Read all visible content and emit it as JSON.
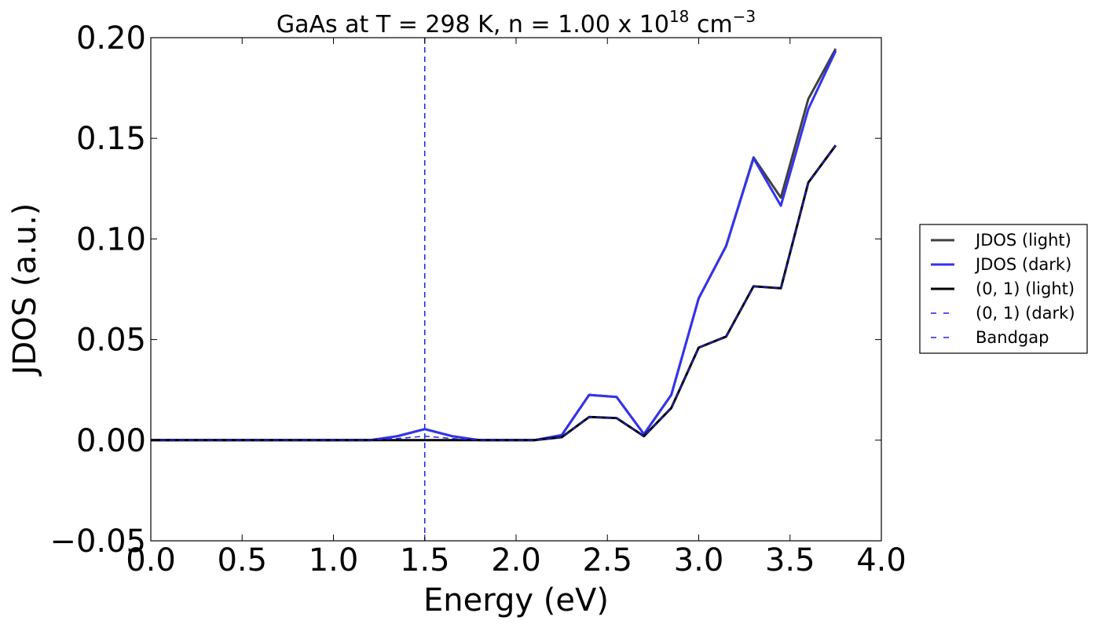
{
  "chart_data": {
    "type": "line",
    "title": "GaAs at T = 298 K, n = 1.00 x 10",
    "title_exp": "18",
    "title_unit": "cm",
    "title_unit_exp": "−3",
    "xlabel": "Energy (eV)",
    "ylabel": "JDOS (a.u.)",
    "xlim": [
      0.0,
      4.0
    ],
    "ylim": [
      -0.05,
      0.2
    ],
    "xticks": [
      "0.0",
      "0.5",
      "1.0",
      "1.5",
      "2.0",
      "2.5",
      "3.0",
      "3.5",
      "4.0"
    ],
    "yticks": [
      "−0.05",
      "0.00",
      "0.05",
      "0.10",
      "0.15",
      "0.20"
    ],
    "grid": false,
    "legend_position": "outside-right",
    "x": [
      0.0,
      0.15,
      0.3,
      0.45,
      0.6,
      0.75,
      0.9,
      1.05,
      1.2,
      1.35,
      1.5,
      1.65,
      1.8,
      1.95,
      2.1,
      2.25,
      2.4,
      2.55,
      2.7,
      2.85,
      3.0,
      3.15,
      3.3,
      3.45,
      3.6,
      3.75
    ],
    "series": [
      {
        "name": "JDOS (light)",
        "color": "#404040",
        "style": "solid",
        "values": [
          0,
          0,
          0,
          0,
          0,
          0,
          0,
          0,
          0,
          0.002,
          0.0055,
          0.002,
          0,
          0,
          0,
          0.0025,
          0.0225,
          0.0215,
          0.003,
          0.0225,
          0.0705,
          0.0965,
          0.1405,
          0.1205,
          0.1695,
          0.1945
        ]
      },
      {
        "name": "JDOS (dark)",
        "color": "#3333ee",
        "style": "solid",
        "values": [
          0,
          0,
          0,
          0,
          0,
          0,
          0,
          0,
          0,
          0.002,
          0.0055,
          0.002,
          0,
          0,
          0,
          0.0025,
          0.0225,
          0.0215,
          0.003,
          0.0225,
          0.0705,
          0.0965,
          0.14,
          0.1165,
          0.1645,
          0.1935
        ]
      },
      {
        "name": "(0, 1) (light)",
        "color": "#000000",
        "style": "solid",
        "values": [
          0,
          0,
          0,
          0,
          0,
          0,
          0,
          0,
          0,
          0,
          0,
          0,
          0,
          0,
          0,
          0.0015,
          0.0115,
          0.011,
          0.002,
          0.016,
          0.046,
          0.0515,
          0.0765,
          0.0755,
          0.128,
          0.1465
        ]
      },
      {
        "name": "(0, 1) (dark)",
        "color": "#2222dd",
        "style": "dashed",
        "values": [
          0,
          0,
          0,
          0,
          0,
          0,
          0,
          0,
          0,
          0.0008,
          0.002,
          0.0008,
          0,
          0,
          0,
          0.0015,
          0.0115,
          0.011,
          0.002,
          0.016,
          0.046,
          0.0515,
          0.0765,
          0.0755,
          0.128,
          0.1465
        ]
      }
    ],
    "vlines": [
      {
        "name": "Bandgap",
        "x": 1.5,
        "color": "#2222dd",
        "style": "dashed"
      }
    ]
  }
}
